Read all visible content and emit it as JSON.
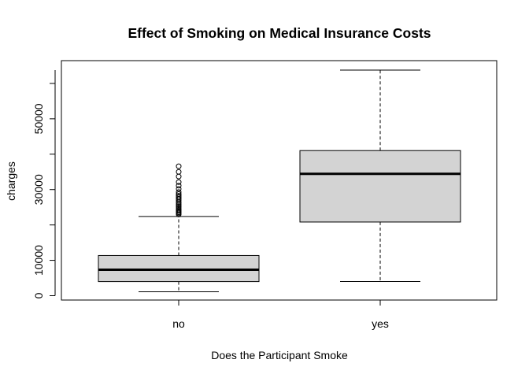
{
  "chart_data": {
    "type": "boxplot",
    "title": "Effect of Smoking on Medical Insurance Costs",
    "xlabel": "Does the Participant Smoke",
    "ylabel": "charges",
    "categories": [
      "no",
      "yes"
    ],
    "y_ticks": [
      0,
      10000,
      30000,
      50000
    ],
    "ylim": [
      0,
      63770
    ],
    "grid": false,
    "legend": "none",
    "box_fill": "#d3d3d3",
    "line_color": "#000000",
    "boxes": [
      {
        "category": "no",
        "whisker_low": 1122,
        "q1": 3986,
        "median": 7345,
        "q3": 11363,
        "whisker_high": 22395,
        "outliers": [
          22950,
          23290,
          23560,
          23900,
          24250,
          24600,
          25000,
          25330,
          25700,
          26150,
          26500,
          26950,
          27350,
          27800,
          28250,
          28700,
          29300,
          30200,
          31100,
          32100,
          33700,
          35000,
          36580
        ]
      },
      {
        "category": "yes",
        "whisker_low": 4000,
        "q1": 20826,
        "median": 34456,
        "q3": 41019,
        "whisker_high": 63770,
        "outliers": []
      }
    ]
  }
}
